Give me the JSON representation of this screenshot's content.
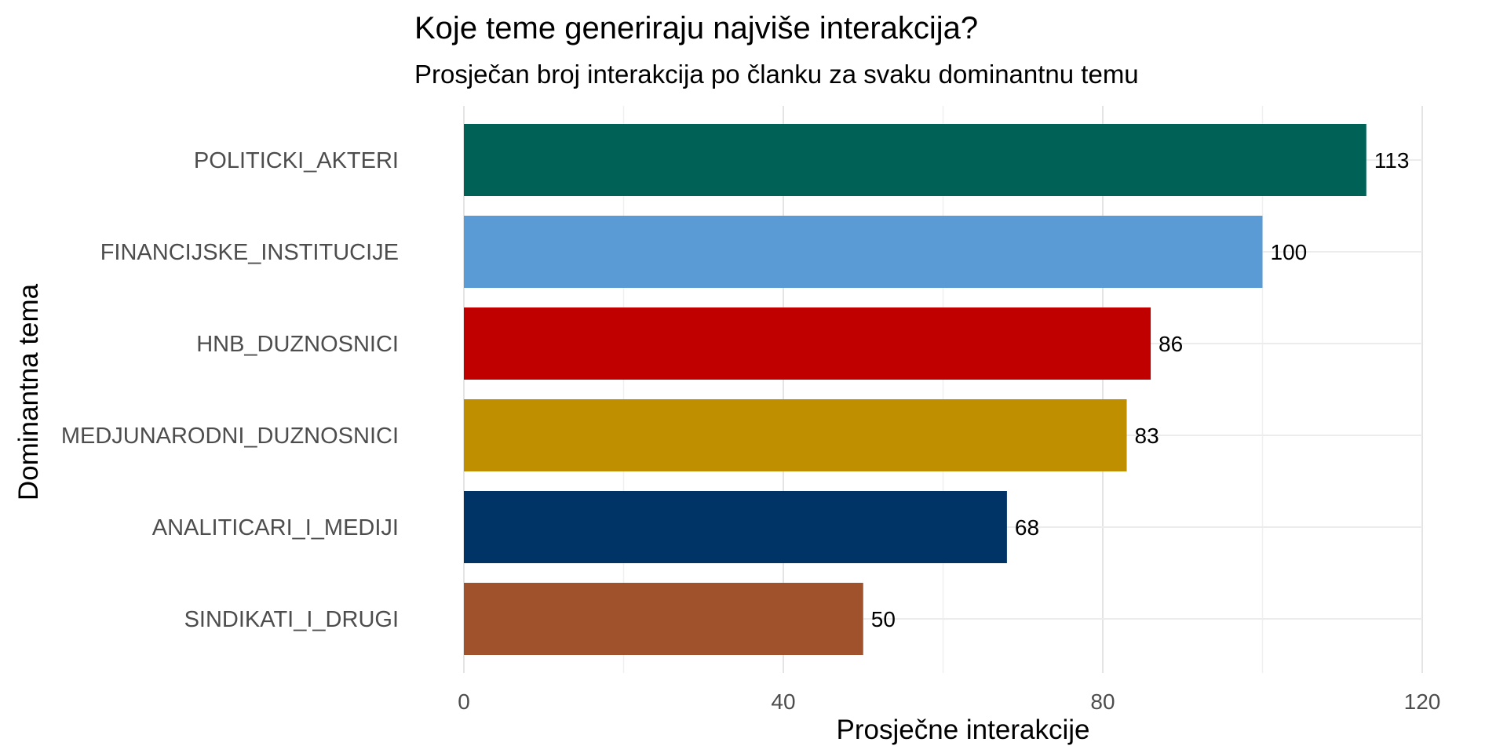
{
  "chart_data": {
    "type": "bar",
    "orientation": "horizontal",
    "title": "Koje teme generiraju najviše interakcija?",
    "subtitle": "Prosječan broj interakcija po članku za svaku dominantnu temu",
    "xlabel": "Prosječne interakcije",
    "ylabel": "Dominantna tema",
    "xlim": [
      0,
      120
    ],
    "xticks": [
      0,
      40,
      80,
      120
    ],
    "grid": true,
    "categories": [
      "POLITICKI_AKTERI",
      "FINANCIJSKE_INSTITUCIJE",
      "HNB_DUZNOSNICI",
      "MEDJUNARODNI_DUZNOSNICI",
      "ANALITICARI_I_MEDIJI",
      "SINDIKATI_I_DRUGI"
    ],
    "values": [
      113,
      100,
      86,
      83,
      68,
      50
    ],
    "value_labels": [
      "113",
      "100",
      "86",
      "83",
      "68",
      "50"
    ],
    "colors": [
      "#006157",
      "#5b9bd5",
      "#c00000",
      "#bf8f00",
      "#003366",
      "#a0522d"
    ]
  }
}
